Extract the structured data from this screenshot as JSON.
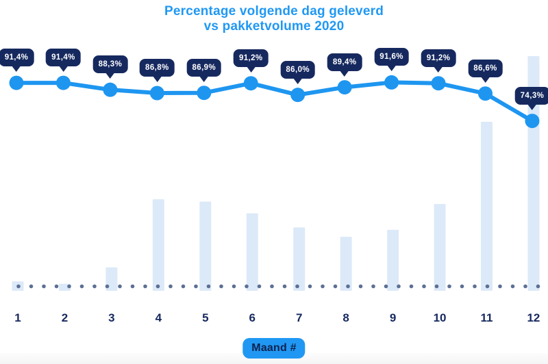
{
  "chart": {
    "title_line1": "Percentage volgende dag geleverd",
    "title_line2": "vs pakketvolume 2020",
    "xlabel_badge": "Maand #"
  },
  "chart_data": {
    "type": "line",
    "title": "Percentage volgende dag geleverd vs pakketvolume 2020",
    "xlabel": "Maand #",
    "categories": [
      "1",
      "2",
      "3",
      "4",
      "5",
      "6",
      "7",
      "8",
      "9",
      "10",
      "11",
      "12"
    ],
    "series": [
      {
        "name": "Percentage volgende dag geleverd",
        "type": "line",
        "unit": "%",
        "values": [
          91.4,
          91.4,
          88.3,
          86.8,
          86.9,
          91.2,
          86.0,
          89.4,
          91.6,
          91.2,
          86.6,
          74.3
        ],
        "labels": [
          "91,4%",
          "91,4%",
          "88,3%",
          "86,8%",
          "86,9%",
          "91,2%",
          "86,0%",
          "89,4%",
          "91,6%",
          "91,2%",
          "86,6%",
          "74,3%"
        ]
      },
      {
        "name": "Pakketvolume 2020",
        "type": "bar",
        "unit": "relative-index",
        "values": [
          4,
          3,
          10,
          39,
          38,
          33,
          27,
          23,
          26,
          37,
          72,
          100
        ]
      }
    ],
    "percent_axis_range": [
      70,
      95
    ],
    "volume_axis_range": [
      0,
      100
    ],
    "grid": "off",
    "legend": "none",
    "baseline_style": "dotted",
    "colors": {
      "line": "#1E96F0",
      "marker": "#1E96F0",
      "bar": "#DCE9F8",
      "tooltip_bg": "#16295F",
      "tooltip_text": "#FFFFFF",
      "title": "#2098F3",
      "axis_label": "#16295F",
      "baseline_dots": "#5C6F93",
      "badge_bg": "#2098F3",
      "badge_text": "#0E2250"
    }
  }
}
